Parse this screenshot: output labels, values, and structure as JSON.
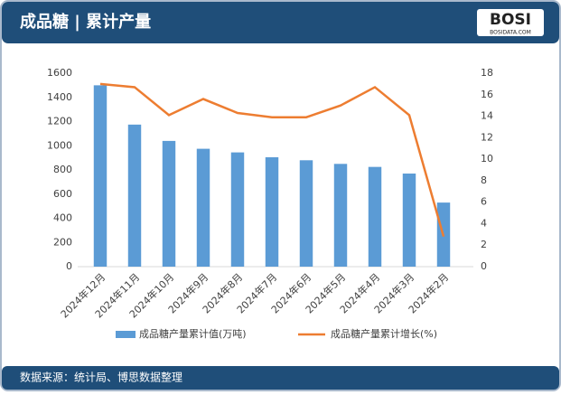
{
  "header": {
    "title": "成品糖 | 累计产量",
    "logo": "BOSI",
    "logo_sub": "BOSIDATA.COM"
  },
  "footer": {
    "source": "数据来源：统计局、博思数据整理"
  },
  "chart_data": {
    "type": "bar",
    "categories": [
      "2024年12月",
      "2024年11月",
      "2024年10月",
      "2024年9月",
      "2024年8月",
      "2024年7月",
      "2024年6月",
      "2024年5月",
      "2024年4月",
      "2024年3月",
      "2024年2月"
    ],
    "series": [
      {
        "name": "成品糖产量累计值(万吨)",
        "type": "bar",
        "color": "#5b9bd5",
        "values": [
          1500,
          1175,
          1040,
          975,
          945,
          905,
          880,
          850,
          825,
          770,
          530
        ]
      },
      {
        "name": "成品糖产量累计增长(%)",
        "type": "line",
        "axis": "y2",
        "color": "#ed7d31",
        "values": [
          17.0,
          16.7,
          14.1,
          15.6,
          14.3,
          13.9,
          13.9,
          15.0,
          16.7,
          14.1,
          2.8
        ]
      }
    ],
    "ylim": [
      0,
      1600
    ],
    "yticks": [
      0,
      200,
      400,
      600,
      800,
      1000,
      1200,
      1400,
      1600
    ],
    "y2lim": [
      0,
      18
    ],
    "y2ticks": [
      0,
      2,
      4,
      6,
      8,
      10,
      12,
      14,
      16,
      18
    ],
    "legend": "bottom"
  }
}
